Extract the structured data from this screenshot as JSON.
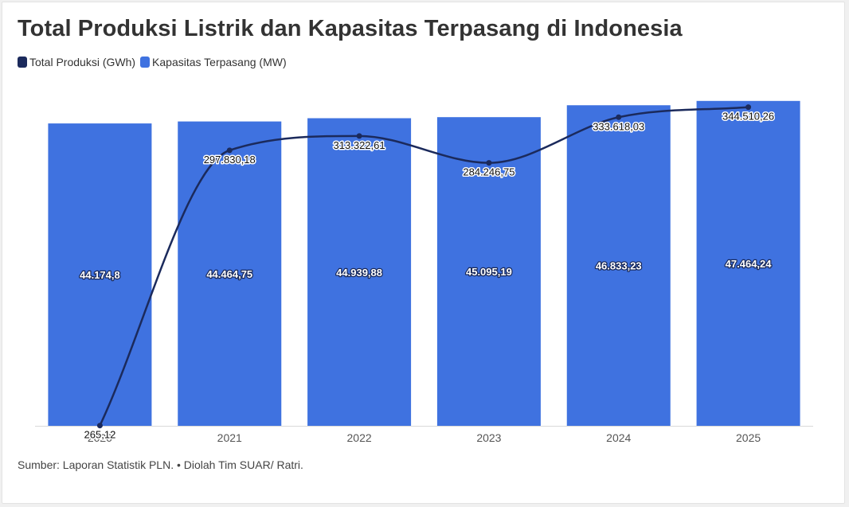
{
  "title": "Total Produksi Listrik dan Kapasitas Terpasang di Indonesia",
  "legend": [
    {
      "label": "Total Produksi (GWh)",
      "color": "#1b2a5c"
    },
    {
      "label": "Kapasitas Terpasang (MW)",
      "color": "#3f72e0"
    }
  ],
  "source": "Sumber: Laporan Statistik PLN. • Diolah Tim SUAR/ Ratri.",
  "chart_data": {
    "type": "bar",
    "categories": [
      "2020",
      "2021",
      "2022",
      "2023",
      "2024",
      "2025"
    ],
    "series": [
      {
        "name": "Kapasitas Terpasang (MW)",
        "type": "bar",
        "color": "#3f72e0",
        "values": [
          44174.8,
          44464.75,
          44939.88,
          45095.19,
          46833.23,
          47464.24
        ],
        "labels": [
          "44.174,8",
          "44.464,75",
          "44.939,88",
          "45.095,19",
          "46.833,23",
          "47.464,24"
        ]
      },
      {
        "name": "Total Produksi (GWh)",
        "type": "line",
        "smooth": true,
        "color": "#1b2a5c",
        "values": [
          265.12,
          297830.18,
          313322.61,
          284246.75,
          333618.03,
          344510.26
        ],
        "labels": [
          "265,12",
          "297.830,18",
          "313.322,61",
          "284.246,75",
          "333.618,03",
          "344.510,26"
        ]
      }
    ],
    "bar_axis_range": [
      0,
      50000
    ],
    "line_axis_range": [
      0,
      370000
    ],
    "grid": false,
    "legend_position": "top-left"
  }
}
